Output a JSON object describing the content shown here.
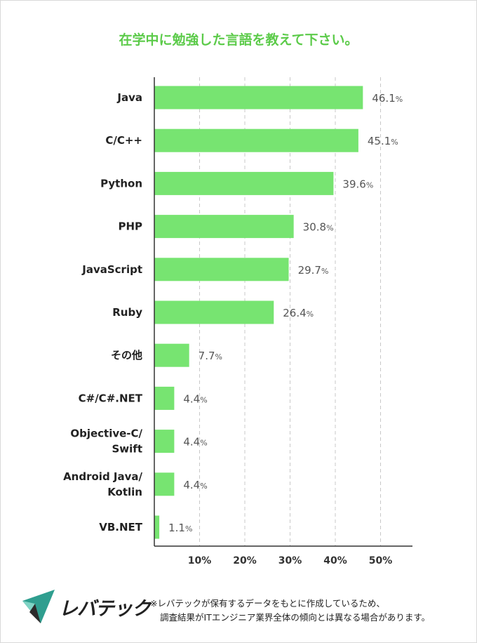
{
  "title": "在学中に勉強した言語を教えて下さい。",
  "chart_data": {
    "type": "bar",
    "orientation": "horizontal",
    "categories": [
      "Java",
      "C/C++",
      "Python",
      "PHP",
      "JavaScript",
      "Ruby",
      "その他",
      "C#/C#.NET",
      "Objective-C/\nSwift",
      "Android Java/\nKotlin",
      "VB.NET"
    ],
    "values": [
      46.1,
      45.1,
      39.6,
      30.8,
      29.7,
      26.4,
      7.7,
      4.4,
      4.4,
      4.4,
      1.1
    ],
    "value_suffix": "%",
    "x_ticks": [
      "10%",
      "20%",
      "30%",
      "40%",
      "50%"
    ],
    "x_tick_values": [
      10,
      20,
      30,
      40,
      50
    ],
    "xlim": [
      0,
      57
    ],
    "grid": "vertical dashed",
    "bar_color": "#77e471"
  },
  "footnote": {
    "line1": "※レバテックが保有するデータをもとに作成しているため、",
    "line2": "調査結果がITエンジニア業界全体の傾向とは異なる場合があります。"
  },
  "logo": {
    "text": "レバテック",
    "colors": [
      "#2f9e8f",
      "#7fd3c4",
      "#2b2b2b"
    ]
  }
}
